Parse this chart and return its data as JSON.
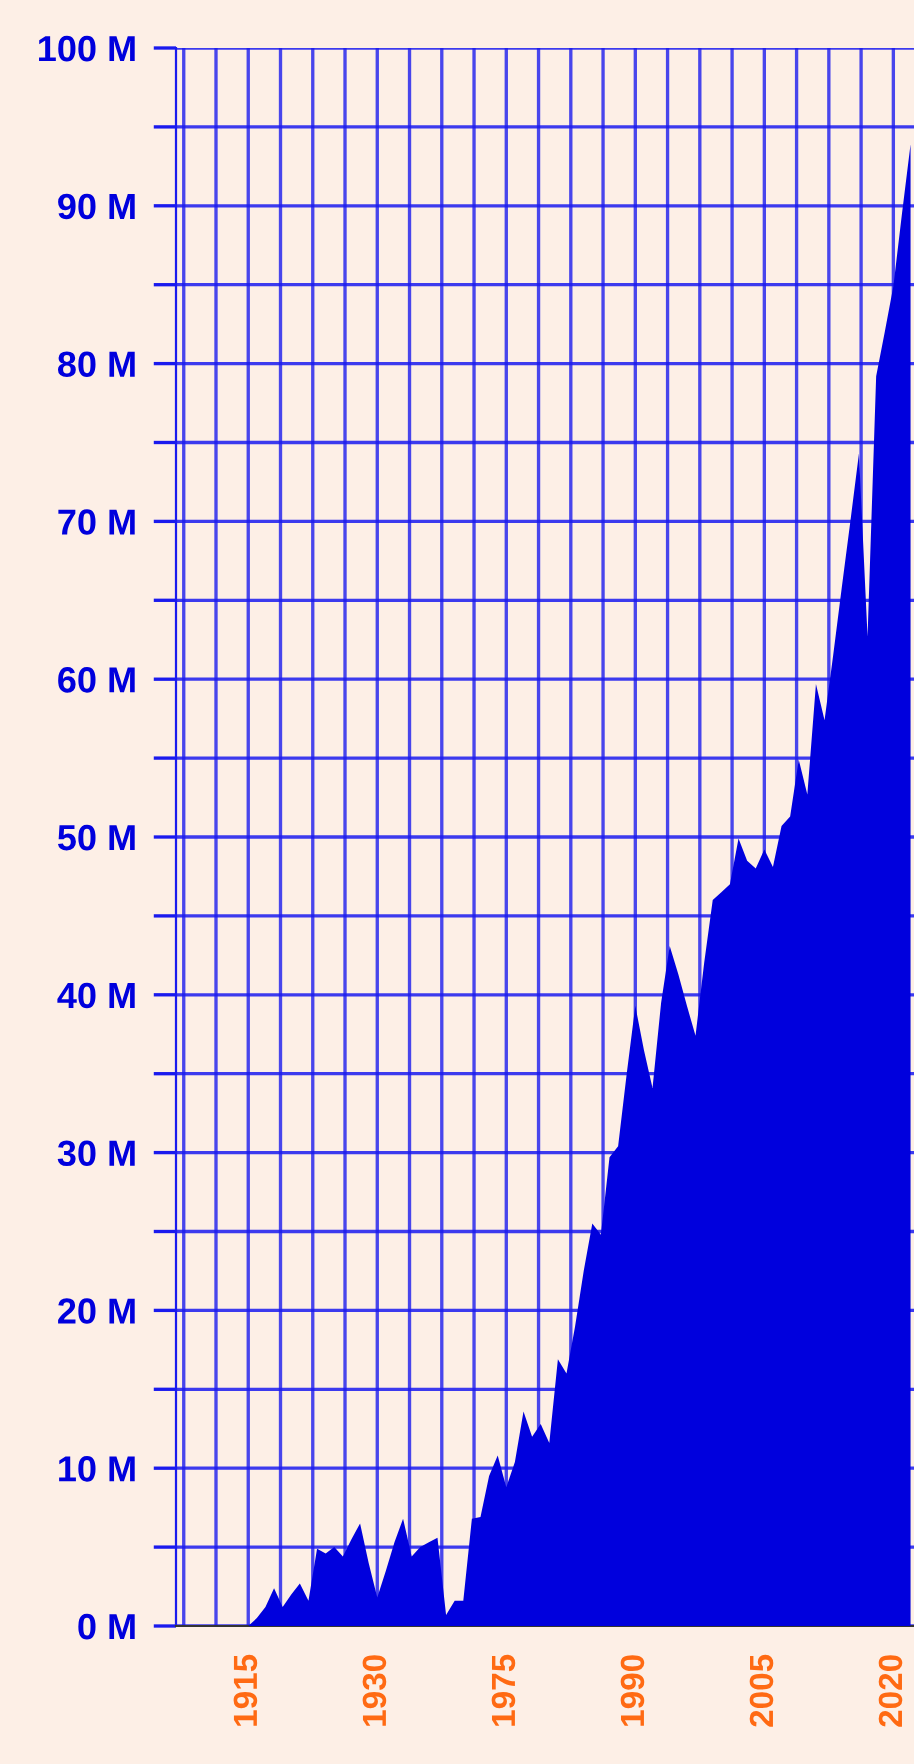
{
  "chart_data": {
    "type": "area",
    "categories": [
      "1915",
      null,
      null,
      null,
      null,
      null,
      null,
      null,
      null,
      null,
      null,
      null,
      null,
      null,
      null,
      "1930",
      null,
      null,
      null,
      null,
      null,
      null,
      null,
      null,
      null,
      null,
      null,
      null,
      null,
      null,
      "1975",
      null,
      null,
      null,
      null,
      null,
      null,
      null,
      null,
      null,
      null,
      null,
      null,
      null,
      null,
      "1990",
      null,
      null,
      null,
      null,
      null,
      null,
      null,
      null,
      null,
      null,
      null,
      null,
      null,
      null,
      "2005",
      null,
      null,
      null,
      null,
      null,
      null,
      null,
      null,
      null,
      null,
      null,
      null,
      null,
      null,
      "2020",
      null,
      null
    ],
    "series": [
      {
        "color": "#0000dd",
        "values": [
          0,
          0.5,
          1.2,
          2.4,
          1.2,
          2.0,
          2.7,
          1.6,
          4.9,
          4.6,
          5.0,
          4.4,
          5.5,
          6.5,
          4.0,
          1.8,
          3.5,
          5.3,
          6.8,
          4.4,
          5.0,
          5.3,
          5.6,
          0.7,
          1.6,
          1.6,
          6.8,
          6.9,
          9.5,
          10.8,
          8.8,
          10.4,
          13.6,
          12.0,
          12.8,
          11.6,
          16.9,
          16.0,
          19.0,
          22.5,
          25.5,
          24.8,
          29.7,
          30.4,
          35,
          39.3,
          36.5,
          34.1,
          39.5,
          43.1,
          41.3,
          39.3,
          37.4,
          42,
          46.0,
          46.5,
          47.0,
          49.9,
          48.5,
          48.0,
          49.2,
          48.1,
          50.7,
          51.3,
          54.9,
          52.7,
          59.7,
          57.4,
          61.5,
          65.8,
          70,
          74.3,
          62.7,
          79.2,
          82,
          84.9,
          89.5,
          93.9
        ]
      }
    ],
    "ylim": [
      0,
      100
    ],
    "yticks": [
      {
        "value": 0,
        "label": "0 M"
      },
      {
        "value": 5,
        "label": null
      },
      {
        "value": 10,
        "label": "10 M"
      },
      {
        "value": 15,
        "label": null
      },
      {
        "value": 20,
        "label": "20 M"
      },
      {
        "value": 25,
        "label": null
      },
      {
        "value": 30,
        "label": "30 M"
      },
      {
        "value": 35,
        "label": null
      },
      {
        "value": 40,
        "label": "40 M"
      },
      {
        "value": 45,
        "label": null
      },
      {
        "value": 50,
        "label": "50 M"
      },
      {
        "value": 55,
        "label": null
      },
      {
        "value": 60,
        "label": "60 M"
      },
      {
        "value": 65,
        "label": null
      },
      {
        "value": 70,
        "label": "70 M"
      },
      {
        "value": 75,
        "label": null
      },
      {
        "value": 80,
        "label": "80 M"
      },
      {
        "value": 85,
        "label": null
      },
      {
        "value": 90,
        "label": "90 M"
      },
      {
        "value": 95,
        "label": null
      },
      {
        "value": 100,
        "label": "100 M"
      }
    ],
    "grid": true,
    "legend": false
  }
}
